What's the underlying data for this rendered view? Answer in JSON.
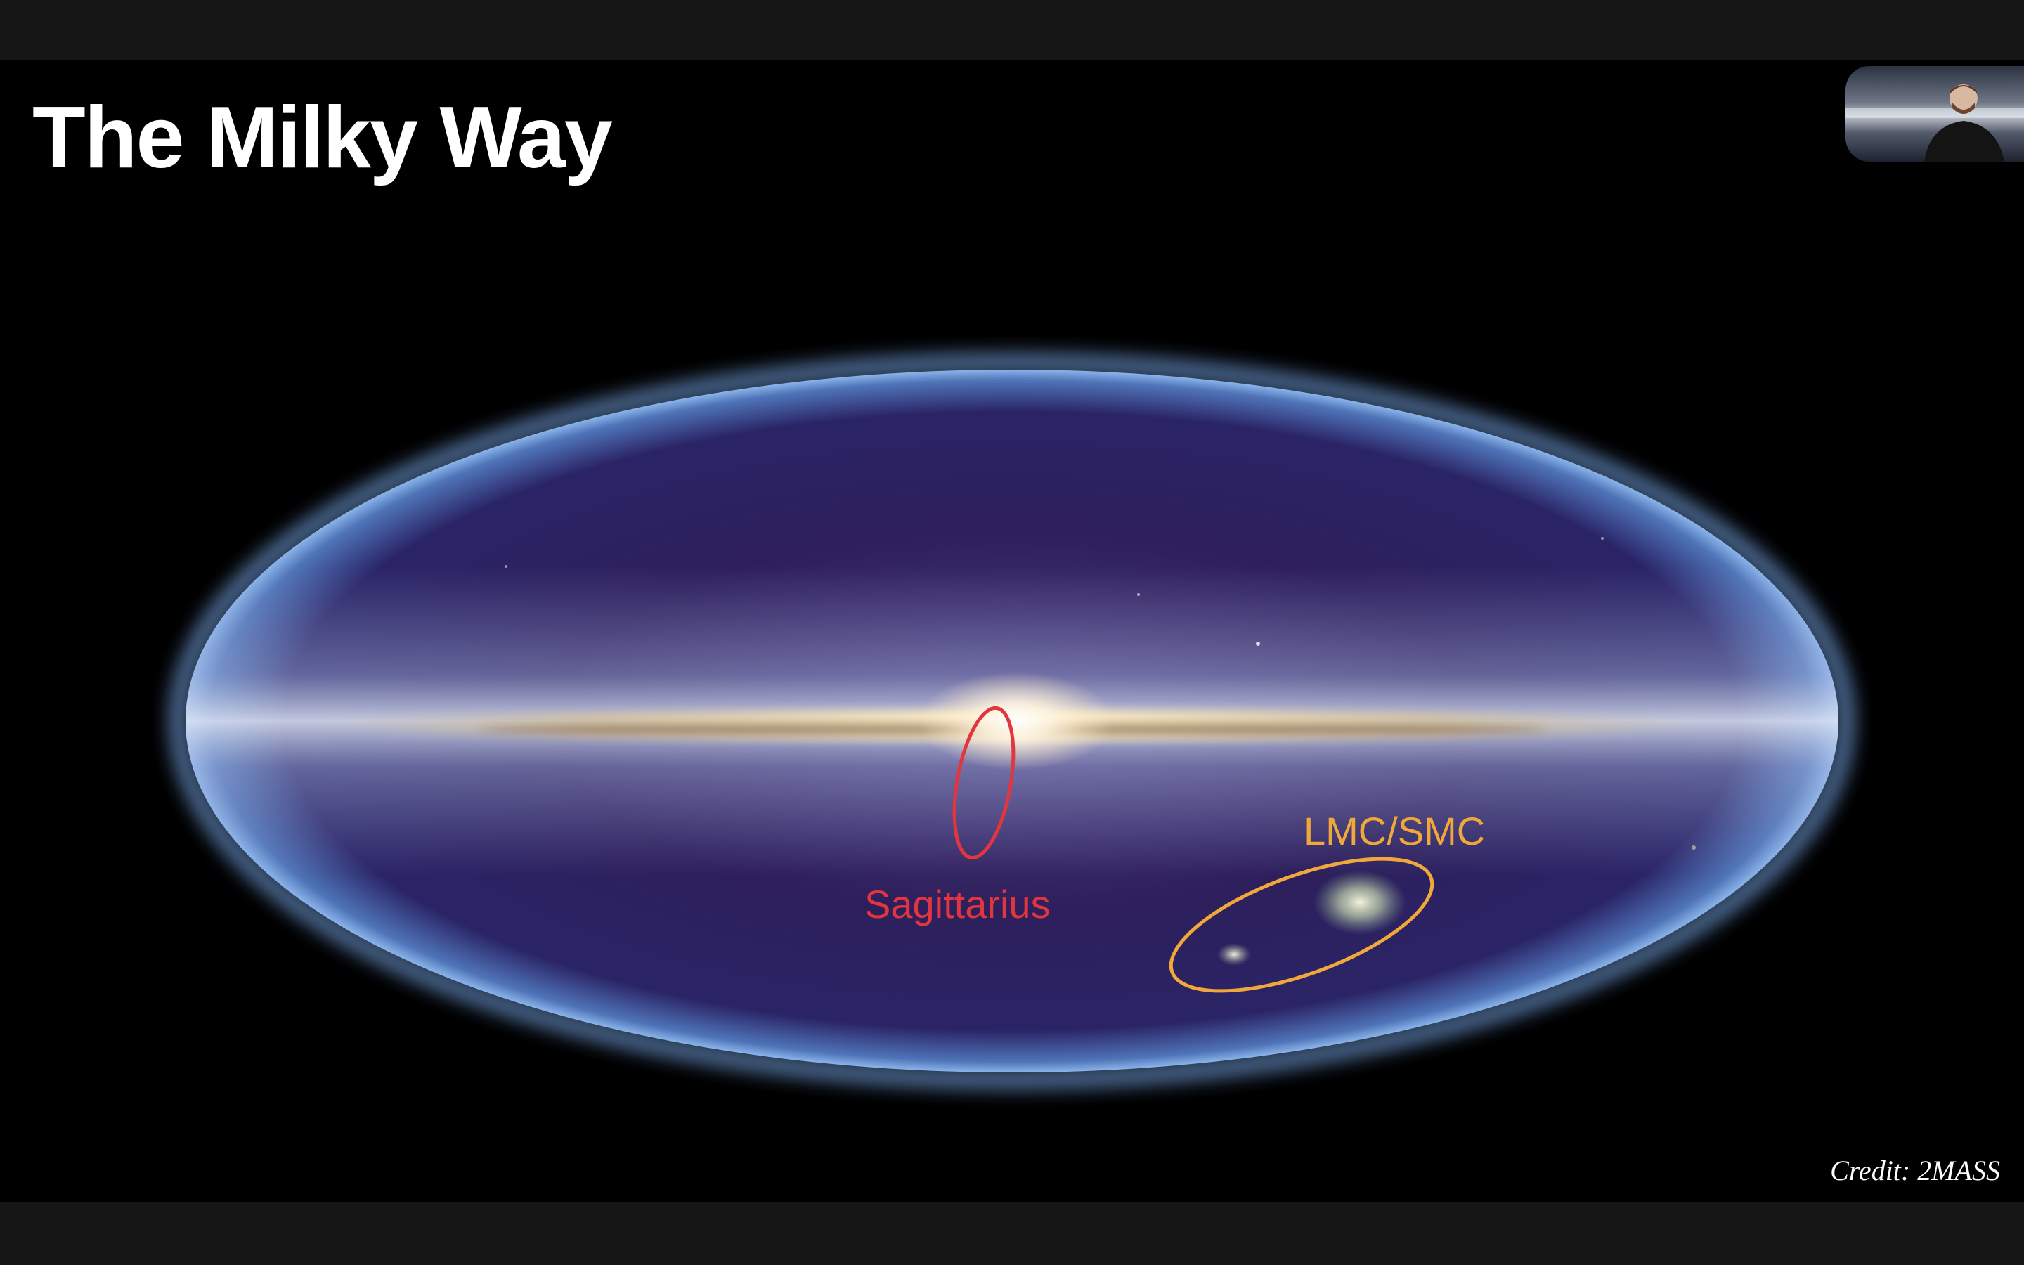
{
  "slide": {
    "title": "The Milky Way",
    "credit": "Credit: 2MASS"
  },
  "annotations": [
    {
      "label": "Sagittarius",
      "color": "#e2363f"
    },
    {
      "label": "LMC/SMC",
      "color": "#f0a83a"
    }
  ],
  "colors": {
    "background": "#000000",
    "window_chrome": "#161616",
    "sky_inner": "#2a1a55",
    "sky_rim": "#6e9ad6",
    "galactic_plane": "#e8d8a8"
  },
  "presenter": {
    "icon": "presenter-video-thumbnail"
  }
}
